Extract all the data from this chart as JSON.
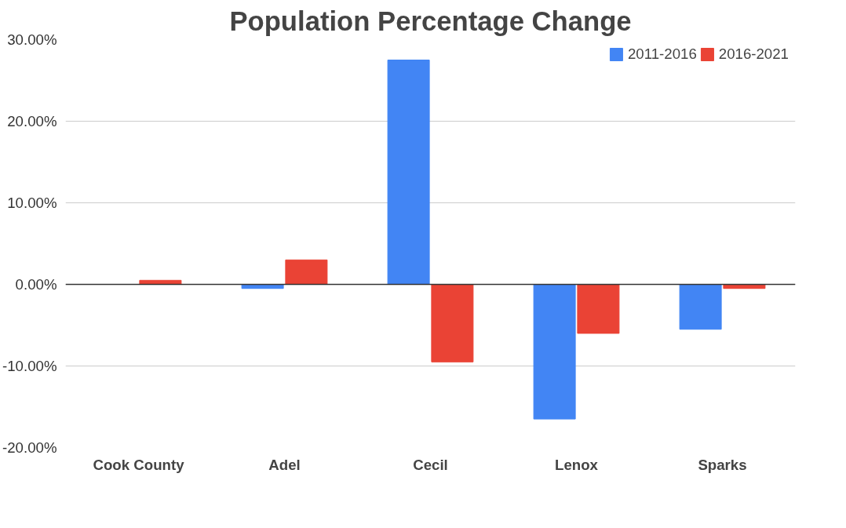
{
  "chart_data": {
    "type": "bar",
    "title": "Population Percentage Change",
    "categories": [
      "Cook County",
      "Adel",
      "Cecil",
      "Lenox",
      "Sparks"
    ],
    "series": [
      {
        "name": "2011-2016",
        "color": "#4285f4",
        "values": [
          0,
          -0.5,
          27.5,
          -16.5,
          -5.5
        ]
      },
      {
        "name": "2016-2021",
        "color": "#ea4335",
        "values": [
          0.5,
          3,
          -9.5,
          -6,
          -0.5
        ]
      }
    ],
    "ylim": [
      -20,
      30
    ],
    "yticks": [
      {
        "value": -20,
        "label": "-20.00%"
      },
      {
        "value": -10,
        "label": "-10.00%"
      },
      {
        "value": 0,
        "label": "0.00%"
      },
      {
        "value": 10,
        "label": "10.00%"
      },
      {
        "value": 20,
        "label": "20.00%"
      },
      {
        "value": 30,
        "label": "30.00%"
      }
    ],
    "grid": "y",
    "legend": "top right"
  }
}
